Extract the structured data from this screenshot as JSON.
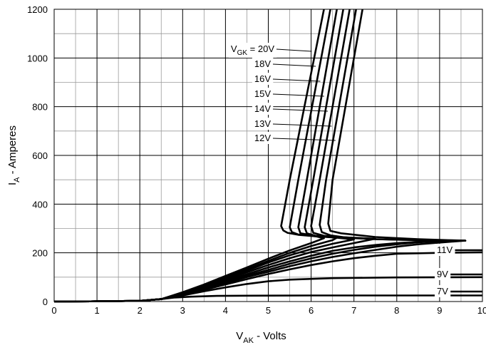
{
  "chart_data": {
    "type": "line",
    "xlabel": {
      "main": "V",
      "sub": "AK",
      "rest": " - Volts"
    },
    "ylabel": {
      "main": "I",
      "sub": "A",
      "rest": " - Amperes"
    },
    "xlim": [
      0,
      10
    ],
    "ylim": [
      0,
      1200
    ],
    "x_ticks": [
      0,
      1,
      2,
      3,
      4,
      5,
      6,
      7,
      8,
      9,
      10
    ],
    "y_ticks": [
      0,
      200,
      400,
      600,
      800,
      1000,
      1200
    ],
    "x_tick_labels": [
      "0",
      "1",
      "2",
      "3",
      "4",
      "5",
      "6",
      "7",
      "8",
      "9",
      "10"
    ],
    "y_tick_labels": [
      "0",
      "200",
      "400",
      "600",
      "800",
      "1000",
      "1200"
    ],
    "grid": true,
    "minor_grid": {
      "x_step": 0.5,
      "y_step": 100
    },
    "line_color": "#000000",
    "series_labels": [
      {
        "prefix": "V",
        "sub": "GK",
        "suffix": " = 20V",
        "target": "20V"
      },
      {
        "text": "18V",
        "target": "18V"
      },
      {
        "text": "16V",
        "target": "16V"
      },
      {
        "text": "15V",
        "target": "15V"
      },
      {
        "text": "14V",
        "target": "14V"
      },
      {
        "text": "13V",
        "target": "13V"
      },
      {
        "text": "12V",
        "target": "12V"
      },
      {
        "text": "11V",
        "target": "11V"
      },
      {
        "text": "9V",
        "target": "9V"
      },
      {
        "text": "7V",
        "target": "7V"
      }
    ],
    "series": [
      {
        "name": "7V",
        "x": [
          0,
          1,
          2,
          2.5,
          2.8,
          3.2,
          3.8,
          4.5,
          6,
          8,
          10
        ],
        "y": [
          0,
          1,
          3,
          10,
          16,
          20,
          23,
          24,
          25,
          25,
          25
        ]
      },
      {
        "name": "9V",
        "x": [
          0,
          1,
          2,
          2.5,
          3,
          3.5,
          4,
          4.5,
          5,
          5.5,
          6.5,
          8,
          10
        ],
        "y": [
          0,
          1,
          3,
          10,
          25,
          42,
          58,
          72,
          83,
          90,
          96,
          99,
          100
        ]
      },
      {
        "name": "11V",
        "x": [
          0,
          1,
          2,
          2.5,
          3,
          3.5,
          4,
          4.5,
          5,
          5.5,
          6,
          6.5,
          7,
          7.5,
          8,
          9,
          10
        ],
        "y": [
          0,
          1,
          3,
          10,
          27,
          48,
          70,
          92,
          113,
          132,
          150,
          165,
          178,
          188,
          196,
          200,
          202
        ]
      },
      {
        "name": "12V",
        "x": [
          0,
          1,
          2,
          2.5,
          3,
          3.5,
          4,
          4.5,
          5,
          5.5,
          6,
          6.5,
          7,
          7.5,
          8,
          8.5,
          9,
          9.6,
          9.2,
          8.5,
          7.5,
          6.7,
          6.45,
          6.4,
          6.5,
          7.2
        ],
        "y": [
          0,
          1,
          3,
          10,
          28,
          50,
          75,
          100,
          122,
          145,
          165,
          183,
          198,
          212,
          225,
          235,
          242,
          250,
          252,
          256,
          265,
          280,
          290,
          320,
          500,
          1200
        ]
      },
      {
        "name": "13V",
        "x": [
          0,
          1,
          2,
          2.5,
          3,
          3.5,
          4,
          4.5,
          5,
          5.5,
          6,
          6.5,
          7,
          7.5,
          8,
          8.5,
          9,
          9.6,
          8.5,
          7.5,
          6.8,
          6.45,
          6.25,
          6.2,
          6.35,
          7.05
        ],
        "y": [
          0,
          1,
          3,
          10,
          30,
          52,
          80,
          106,
          130,
          155,
          177,
          196,
          212,
          225,
          235,
          243,
          248,
          250,
          252,
          256,
          263,
          272,
          285,
          315,
          500,
          1200
        ]
      },
      {
        "name": "14V",
        "x": [
          0,
          1,
          2,
          2.5,
          3,
          3.5,
          4,
          4.5,
          5,
          5.5,
          6,
          6.5,
          7,
          7.5,
          8,
          8.5,
          9,
          9.6,
          8.5,
          7.5,
          6.8,
          6.3,
          6.05,
          6.0,
          6.2,
          6.9
        ],
        "y": [
          0,
          1,
          3,
          10,
          32,
          56,
          85,
          112,
          140,
          165,
          188,
          208,
          222,
          232,
          240,
          245,
          248,
          250,
          252,
          256,
          262,
          270,
          282,
          310,
          500,
          1200
        ]
      },
      {
        "name": "15V",
        "x": [
          0,
          1,
          2,
          2.5,
          3,
          3.5,
          4,
          4.5,
          5,
          5.5,
          6,
          6.5,
          7,
          7.5,
          7.0,
          6.5,
          6.1,
          5.9,
          5.85,
          6.05,
          6.75
        ],
        "y": [
          0,
          1,
          3,
          10,
          34,
          60,
          90,
          120,
          150,
          178,
          203,
          222,
          240,
          258,
          262,
          266,
          270,
          280,
          305,
          500,
          1200
        ]
      },
      {
        "name": "16V",
        "x": [
          0,
          1,
          2,
          2.5,
          3,
          3.5,
          4,
          4.5,
          5,
          5.5,
          6,
          6.5,
          7,
          6.6,
          6.1,
          5.75,
          5.7,
          5.9,
          6.6
        ],
        "y": [
          0,
          1,
          3,
          10,
          35,
          63,
          95,
          127,
          160,
          190,
          215,
          237,
          255,
          262,
          270,
          280,
          305,
          500,
          1200
        ]
      },
      {
        "name": "18V",
        "x": [
          0,
          1,
          2,
          2.5,
          3,
          3.5,
          4,
          4.5,
          5,
          5.5,
          6,
          6.5,
          6.6,
          6.1,
          5.7,
          5.55,
          5.5,
          5.7,
          6.45
        ],
        "y": [
          0,
          1,
          3,
          10,
          36,
          66,
          100,
          133,
          167,
          200,
          228,
          252,
          262,
          268,
          275,
          285,
          305,
          500,
          1200
        ]
      },
      {
        "name": "20V",
        "x": [
          0,
          1,
          2,
          2.5,
          3,
          3.5,
          4,
          4.5,
          5,
          5.5,
          6,
          6.3,
          6.1,
          5.7,
          5.45,
          5.35,
          5.3,
          5.5,
          6.3
        ],
        "y": [
          0,
          1,
          3,
          10,
          38,
          70,
          105,
          140,
          176,
          210,
          240,
          260,
          268,
          274,
          282,
          292,
          310,
          500,
          1200
        ]
      }
    ]
  }
}
